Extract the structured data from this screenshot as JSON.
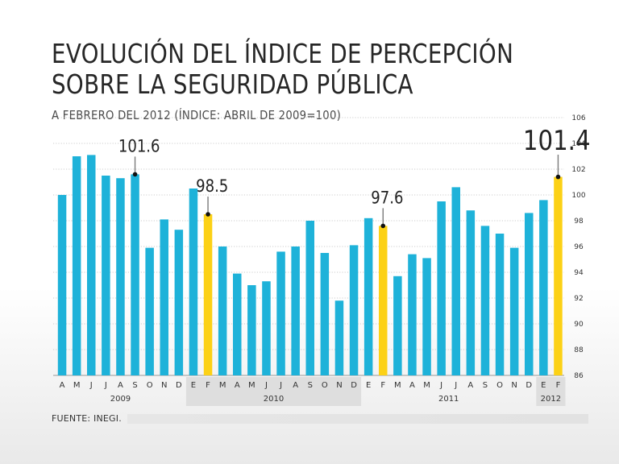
{
  "page": {
    "title_line1": "EVOLUCIÓN DEL ÍNDICE DE PERCEPCIÓN",
    "title_line2": "SOBRE LA SEGURIDAD PÚBLICA",
    "subtitle": "A FEBRERO DEL 2012 (ÍNDICE: ABRIL DE 2009=100)",
    "source": "FUENTE: INEGI."
  },
  "chart_data": {
    "type": "bar",
    "title": "EVOLUCIÓN DEL ÍNDICE DE PERCEPCIÓN SOBRE LA SEGURIDAD PÚBLICA",
    "subtitle": "A FEBRERO DEL 2012 (ÍNDICE: ABRIL DE 2009=100)",
    "xlabel": "",
    "ylabel": "",
    "ylim": [
      86,
      106
    ],
    "yticks": [
      86,
      88,
      90,
      92,
      94,
      96,
      98,
      100,
      102,
      104,
      106
    ],
    "categories": [
      "A",
      "M",
      "J",
      "J",
      "A",
      "S",
      "O",
      "N",
      "D",
      "E",
      "F",
      "M",
      "A",
      "M",
      "J",
      "J",
      "A",
      "S",
      "O",
      "N",
      "D",
      "E",
      "F",
      "M",
      "A",
      "M",
      "J",
      "J",
      "A",
      "S",
      "O",
      "N",
      "D",
      "E",
      "F"
    ],
    "values": [
      100.0,
      103.0,
      103.1,
      101.5,
      101.3,
      101.6,
      95.9,
      98.1,
      97.3,
      100.5,
      98.5,
      96.0,
      93.9,
      93.0,
      93.3,
      95.6,
      96.0,
      98.0,
      95.5,
      91.8,
      96.1,
      98.2,
      97.6,
      93.7,
      95.4,
      95.1,
      99.5,
      100.6,
      98.8,
      97.6,
      97.0,
      95.9,
      98.6,
      99.6,
      101.4
    ],
    "highlight_indices": [
      10,
      22,
      34
    ],
    "years": [
      {
        "label": "2009",
        "start": 0,
        "end": 8,
        "shaded": false
      },
      {
        "label": "2010",
        "start": 9,
        "end": 20,
        "shaded": true
      },
      {
        "label": "2011",
        "start": 21,
        "end": 32,
        "shaded": false
      },
      {
        "label": "2012",
        "start": 33,
        "end": 34,
        "shaded": true
      }
    ],
    "callouts": [
      {
        "index": 5,
        "label": "101.6",
        "size": "medium"
      },
      {
        "index": 10,
        "label": "98.5",
        "size": "medium"
      },
      {
        "index": 22,
        "label": "97.6",
        "size": "medium"
      },
      {
        "index": 34,
        "label": "101.4",
        "size": "large"
      }
    ],
    "colors": {
      "bar": "#1eb2d9",
      "highlight": "#fcd116",
      "grid": "#bdbdbd",
      "callout_line": "#7a7a7a",
      "year_band": "#dedede"
    },
    "grid": true
  }
}
